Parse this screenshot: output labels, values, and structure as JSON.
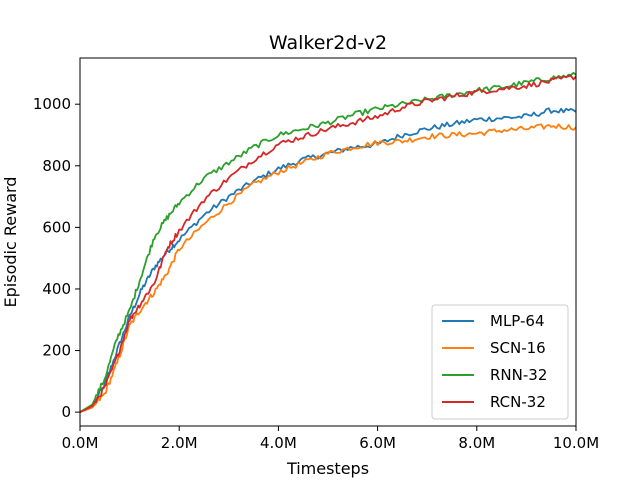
{
  "chart_data": {
    "type": "line",
    "title": "Walker2d-v2",
    "xlabel": "Timesteps",
    "ylabel": "Episodic Reward",
    "xlim": [
      0,
      10
    ],
    "ylim": [
      -45,
      1150
    ],
    "x_ticks": [
      0,
      2,
      4,
      6,
      8,
      10
    ],
    "x_tick_labels": [
      "0.0M",
      "2.0M",
      "4.0M",
      "6.0M",
      "8.0M",
      "10.0M"
    ],
    "y_ticks": [
      0,
      200,
      400,
      600,
      800,
      1000
    ],
    "y_tick_labels": [
      "0",
      "200",
      "400",
      "600",
      "800",
      "1000"
    ],
    "grid": false,
    "legend_position": "lower-right",
    "x": [
      0,
      0.25,
      0.5,
      0.75,
      1.0,
      1.25,
      1.5,
      1.75,
      2.0,
      2.5,
      3.0,
      3.5,
      4.0,
      4.5,
      5.0,
      5.5,
      6.0,
      6.5,
      7.0,
      7.5,
      8.0,
      8.5,
      9.0,
      9.5,
      10.0
    ],
    "series": [
      {
        "name": "MLP-64",
        "color": "#1f77b4",
        "values": [
          0,
          20,
          90,
          200,
          310,
          400,
          470,
          520,
          560,
          640,
          700,
          750,
          790,
          820,
          840,
          860,
          870,
          900,
          920,
          935,
          950,
          955,
          960,
          980,
          975
        ]
      },
      {
        "name": "SCN-16",
        "color": "#ff7f0e",
        "values": [
          0,
          15,
          60,
          160,
          280,
          340,
          390,
          450,
          530,
          610,
          680,
          740,
          780,
          810,
          840,
          860,
          875,
          880,
          895,
          900,
          905,
          915,
          920,
          930,
          925
        ]
      },
      {
        "name": "RNN-32",
        "color": "#2ca02c",
        "values": [
          0,
          25,
          110,
          240,
          330,
          450,
          570,
          630,
          680,
          760,
          810,
          860,
          900,
          920,
          940,
          965,
          985,
          1000,
          1015,
          1030,
          1045,
          1055,
          1070,
          1085,
          1095
        ]
      },
      {
        "name": "RCN-32",
        "color": "#d62728",
        "values": [
          0,
          20,
          80,
          180,
          300,
          360,
          420,
          530,
          590,
          690,
          760,
          820,
          870,
          895,
          920,
          940,
          960,
          990,
          1010,
          1025,
          1040,
          1050,
          1060,
          1075,
          1090
        ]
      }
    ]
  }
}
